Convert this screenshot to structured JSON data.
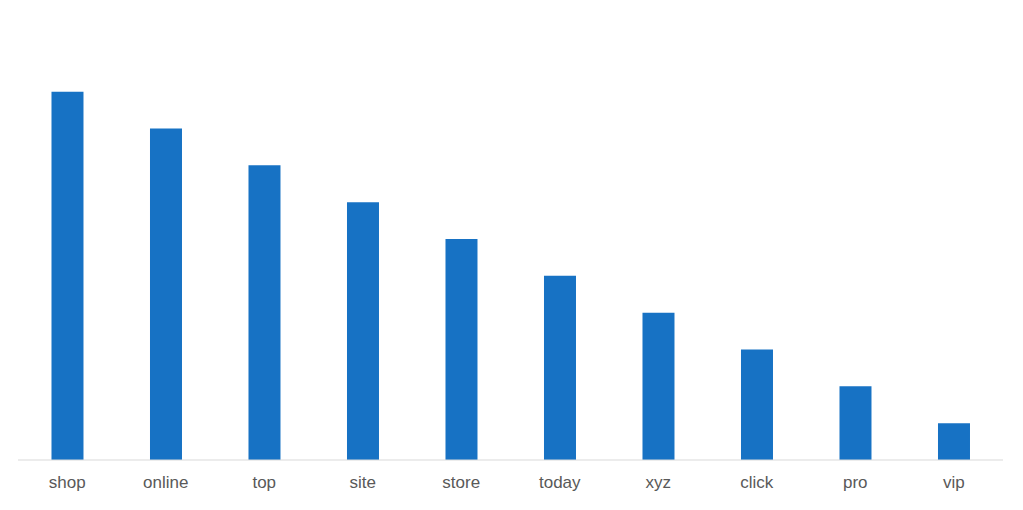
{
  "chart_data": {
    "type": "bar",
    "categories": [
      "shop",
      "online",
      "top",
      "site",
      "store",
      "today",
      "xyz",
      "click",
      "pro",
      "vip"
    ],
    "values": [
      5,
      4.5,
      4,
      3.5,
      3,
      2.5,
      2,
      1.5,
      1,
      0.5
    ],
    "color": "#1772c4",
    "ylim": [
      0,
      6
    ],
    "yticks": [
      0,
      1,
      2,
      3,
      4,
      5,
      6
    ],
    "grid": true,
    "tick_labels": "x"
  }
}
